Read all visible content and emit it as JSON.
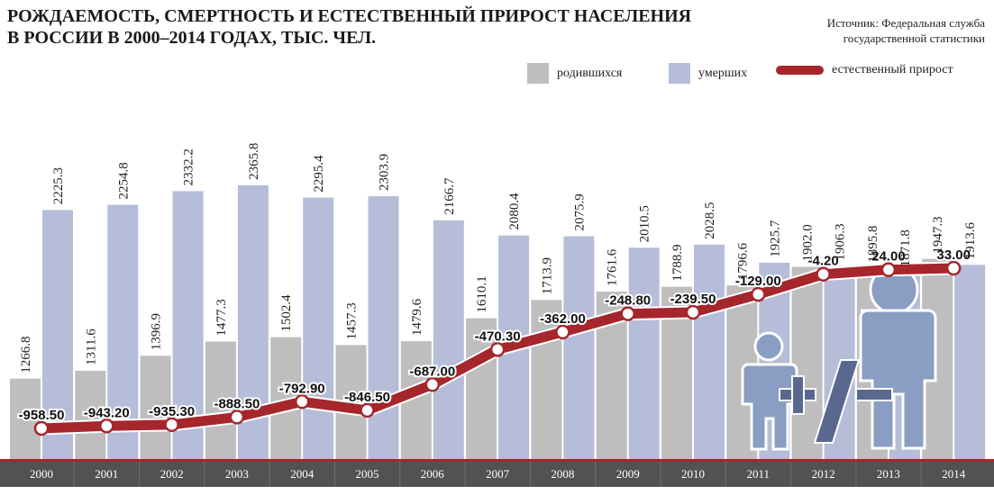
{
  "title": "РОЖДАЕМОСТЬ, СМЕРТНОСТЬ И ЕСТЕСТВЕННЫЙ ПРИРОСТ НАСЕЛЕНИЯ В РОССИИ В 2000–2014 ГОДАХ, ТЫС. ЧЕЛ.",
  "source": "Источник: Федеральная служба государственной статистики",
  "legend": {
    "births": "родившихся",
    "deaths": "умерших",
    "growth": "естественный прирост"
  },
  "icon": "plus-minus-family-icon",
  "colors": {
    "births": "#bebebf",
    "deaths": "#b5bdd9",
    "growth": "#a5262b",
    "axis": "#525252",
    "accent_line": "#a5262b",
    "icon": "#8a9dc3",
    "icon_dark": "#5a6890"
  },
  "chart_data": {
    "type": "bar",
    "categories": [
      "2000",
      "2001",
      "2002",
      "2003",
      "2004",
      "2005",
      "2006",
      "2007",
      "2008",
      "2009",
      "2010",
      "2011",
      "2012",
      "2013",
      "2014"
    ],
    "series": [
      {
        "name": "родившихся",
        "type": "bar",
        "values": [
          1266.8,
          1311.6,
          1396.9,
          1477.3,
          1502.4,
          1457.3,
          1479.6,
          1610.1,
          1713.9,
          1761.6,
          1788.9,
          1796.6,
          1902.0,
          1895.8,
          1947.3
        ]
      },
      {
        "name": "умерших",
        "type": "bar",
        "values": [
          2225.3,
          2254.8,
          2332.2,
          2365.8,
          2295.4,
          2303.9,
          2166.7,
          2080.4,
          2075.9,
          2010.5,
          2028.5,
          1925.7,
          1906.3,
          1871.8,
          1913.6
        ]
      },
      {
        "name": "естественный прирост",
        "type": "line",
        "values": [
          -958.5,
          -943.2,
          -935.3,
          -888.5,
          -792.9,
          -846.5,
          -687.0,
          -470.3,
          -362.0,
          -248.8,
          -239.5,
          -129.0,
          -4.2,
          24.0,
          33.0
        ]
      }
    ],
    "bar_labels": {
      "births": [
        "1266.8",
        "1311.6",
        "1396.9",
        "1477.3",
        "1502.4",
        "1457.3",
        "1479.6",
        "1610.1",
        "1713.9",
        "1761.6",
        "1788.9",
        "1796.6",
        "1902.0",
        "1895.8",
        "1947.3"
      ],
      "deaths": [
        "2225.3",
        "2254.8",
        "2332.2",
        "2365.8",
        "2295.4",
        "2303.9",
        "2166.7",
        "2080.4",
        "2075.9",
        "2010.5",
        "2028.5",
        "1925.7",
        "1906.3",
        "1871.8",
        "1913.6"
      ]
    },
    "line_labels": [
      "-958.50",
      "-943.20",
      "-935.30",
      "-888.50",
      "-792.90",
      "-846.50",
      "-687.00",
      "-470.30",
      "-362.00",
      "-248.80",
      "-239.50",
      "-129.00",
      "-4.20",
      "24.00",
      "33.00"
    ]
  }
}
